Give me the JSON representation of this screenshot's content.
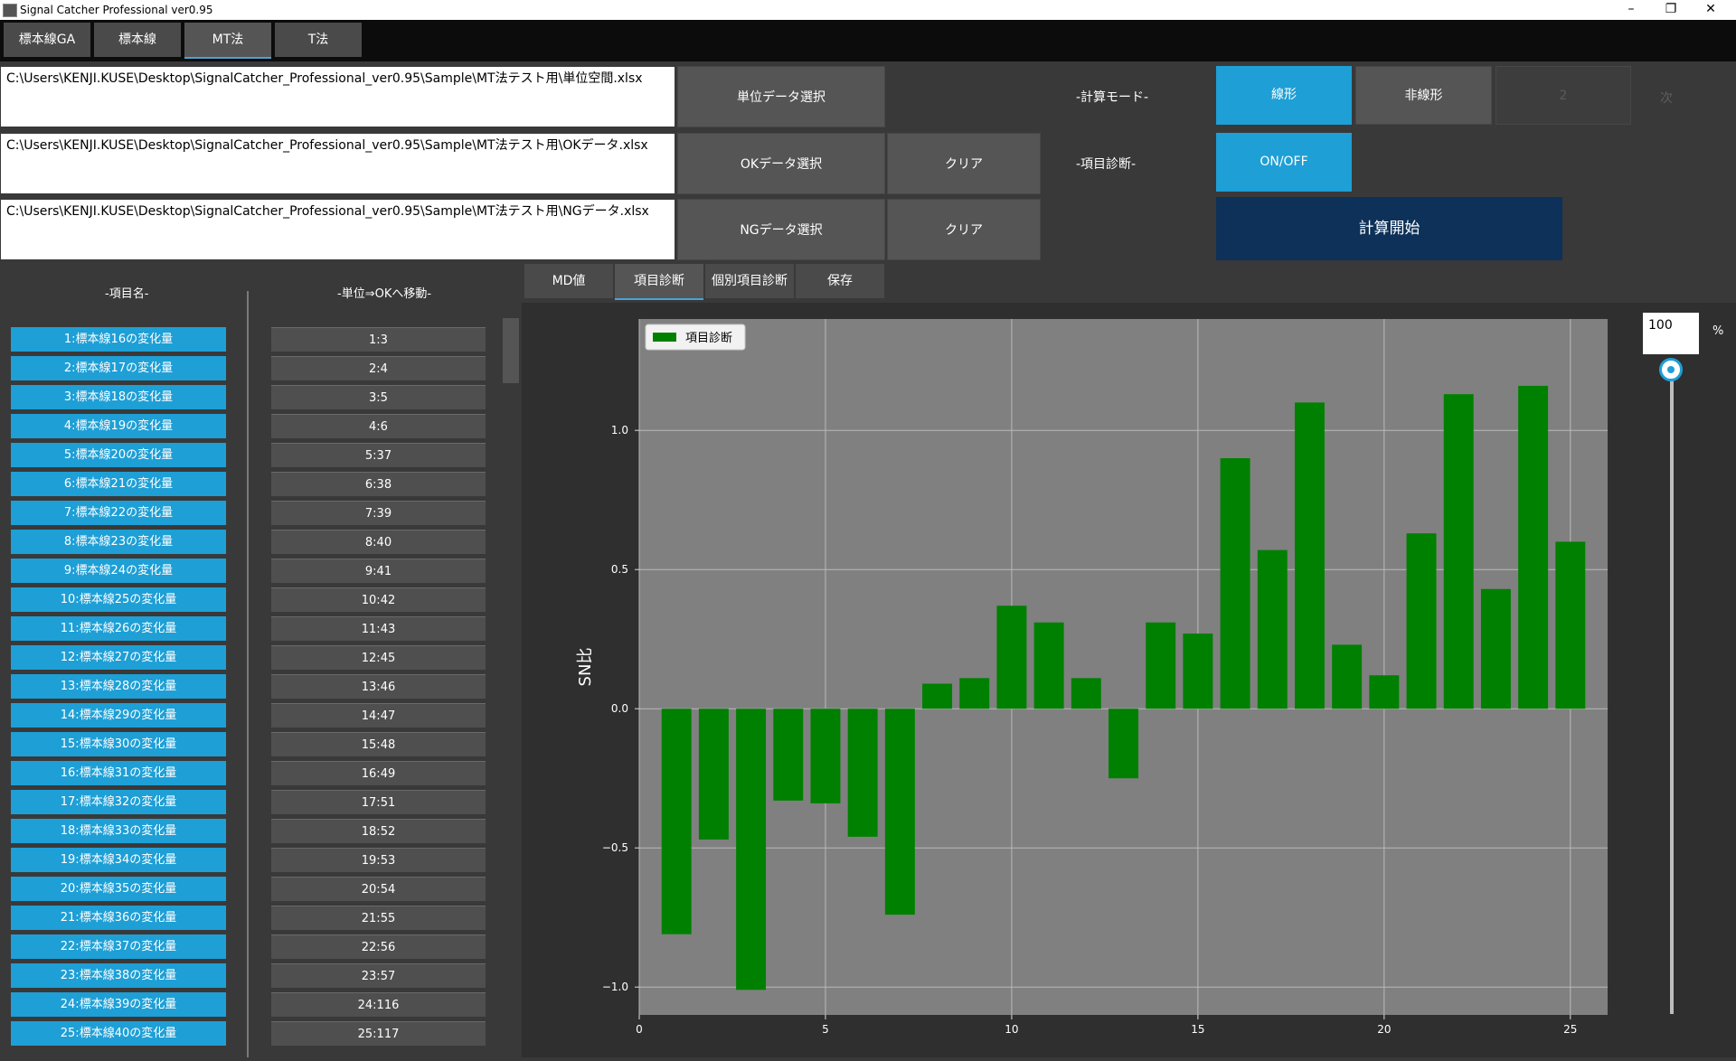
{
  "window": {
    "title": "Signal Catcher Professional ver0.95",
    "minimize": "–",
    "maximize": "❐",
    "close": "✕"
  },
  "top_tabs": [
    {
      "label": "標本線GA"
    },
    {
      "label": "標本線"
    },
    {
      "label": "MT法"
    },
    {
      "label": "T法"
    }
  ],
  "files": {
    "unit_path": "C:\\Users\\KENJI.KUSE\\Desktop\\SignalCatcher_Professional_ver0.95\\Sample\\MT法テスト用\\単位空間.xlsx",
    "ok_path": "C:\\Users\\KENJI.KUSE\\Desktop\\SignalCatcher_Professional_ver0.95\\Sample\\MT法テスト用\\OKデータ.xlsx",
    "ng_path": "C:\\Users\\KENJI.KUSE\\Desktop\\SignalCatcher_Professional_ver0.95\\Sample\\MT法テスト用\\NGデータ.xlsx",
    "unit_button": "単位データ選択",
    "ok_button": "OKデータ選択",
    "ng_button": "NGデータ選択",
    "clear1": "クリア",
    "clear2": "クリア"
  },
  "mode": {
    "label": "-計算モード-",
    "linear": "線形",
    "nonlinear": "非線形",
    "degree": "2",
    "degree_label": "次",
    "diag_label": "-項目診断-",
    "onoff": "ON/OFF",
    "start": "計算開始"
  },
  "left": {
    "header_items": "-項目名-",
    "header_pairs": "-単位⇒OKへ移動-",
    "items": [
      "1:標本線16の変化量",
      "2:標本線17の変化量",
      "3:標本線18の変化量",
      "4:標本線19の変化量",
      "5:標本線20の変化量",
      "6:標本線21の変化量",
      "7:標本線22の変化量",
      "8:標本線23の変化量",
      "9:標本線24の変化量",
      "10:標本線25の変化量",
      "11:標本線26の変化量",
      "12:標本線27の変化量",
      "13:標本線28の変化量",
      "14:標本線29の変化量",
      "15:標本線30の変化量",
      "16:標本線31の変化量",
      "17:標本線32の変化量",
      "18:標本線33の変化量",
      "19:標本線34の変化量",
      "20:標本線35の変化量",
      "21:標本線36の変化量",
      "22:標本線37の変化量",
      "23:標本線38の変化量",
      "24:標本線39の変化量",
      "25:標本線40の変化量"
    ],
    "pairs": [
      "1:3",
      "2:4",
      "3:5",
      "4:6",
      "5:37",
      "6:38",
      "7:39",
      "8:40",
      "9:41",
      "10:42",
      "11:43",
      "12:45",
      "13:46",
      "14:47",
      "15:48",
      "16:49",
      "17:51",
      "18:52",
      "19:53",
      "20:54",
      "21:55",
      "22:56",
      "23:57",
      "24:116",
      "25:117"
    ]
  },
  "sub_tabs": [
    {
      "label": "MD値"
    },
    {
      "label": "項目診断"
    },
    {
      "label": "個別項目診断"
    },
    {
      "label": "保存"
    }
  ],
  "zoom": {
    "value": "100",
    "unit": "%",
    "slider_fraction": 1.0
  },
  "colors": {
    "accent": "#1e9fd6",
    "bar": "#008000",
    "start_button": "#0d3158",
    "plot_bg": "#808080"
  },
  "chart_data": {
    "type": "bar",
    "legend": "項目診断",
    "legend_position": "top-left",
    "ylabel": "SN比",
    "xlabel": "",
    "x": [
      1,
      2,
      3,
      4,
      5,
      6,
      7,
      8,
      9,
      10,
      11,
      12,
      13,
      14,
      15,
      16,
      17,
      18,
      19,
      20,
      21,
      22,
      23,
      24,
      25
    ],
    "values": [
      -0.81,
      -0.47,
      -1.01,
      -0.33,
      -0.34,
      -0.46,
      -0.74,
      0.09,
      0.11,
      0.37,
      0.31,
      0.11,
      -0.25,
      0.31,
      0.27,
      0.9,
      0.57,
      1.1,
      0.23,
      0.12,
      0.63,
      1.13,
      0.43,
      1.16,
      0.6
    ],
    "xlim": [
      0,
      26
    ],
    "ylim": [
      -1.1,
      1.4
    ],
    "xticks": [
      0,
      5,
      10,
      15,
      20,
      25
    ],
    "yticks": [
      -1.0,
      -0.5,
      0.0,
      0.5,
      1.0
    ],
    "xtick_labels": [
      "0",
      "5",
      "10",
      "15",
      "20",
      "25"
    ],
    "ytick_labels": [
      "−1.0",
      "−0.5",
      "0.0",
      "0.5",
      "1.0"
    ],
    "grid": true
  }
}
